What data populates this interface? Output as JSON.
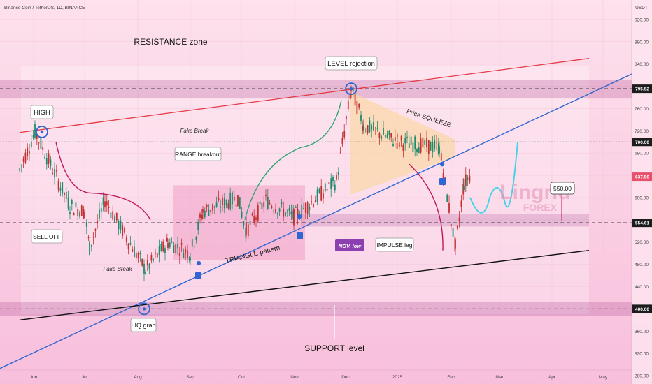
{
  "header": {
    "symbol": "Binance Coin / TetherUS, 1D, BINANCE",
    "currency": "USDT"
  },
  "chart_data": {
    "type": "candlestick",
    "title": "Binance Coin / TetherUS, 1D, BINANCE",
    "y_axis": {
      "ticks": [
        280,
        320,
        360,
        400,
        440,
        480,
        520,
        560,
        600,
        640,
        680,
        720,
        760,
        800,
        840,
        880,
        920
      ],
      "ylim": [
        265,
        955
      ]
    },
    "x_axis": {
      "ticks": [
        "Jun",
        "Jul",
        "Aug",
        "Sep",
        "Oct",
        "Nov",
        "Dec",
        "2025",
        "Feb",
        "Mar",
        "Apr",
        "May"
      ]
    },
    "price_tags": [
      {
        "label": "795.52",
        "value": 795.52,
        "style": "dark"
      },
      {
        "label": "700.00",
        "value": 700,
        "style": "dark"
      },
      {
        "label": "637.50",
        "value": 637.5,
        "style": "red"
      },
      {
        "label": "554.61",
        "value": 554.61,
        "style": "dark"
      },
      {
        "label": "400.00",
        "value": 400,
        "style": "dark"
      }
    ],
    "target_label": "550.00",
    "series": [
      {
        "name": "BNB/USDT daily",
        "key_points": [
          [
            "Jun",
            650
          ],
          [
            "Jun 6",
            718
          ],
          [
            "Jun 20",
            585
          ],
          [
            "Jul",
            575
          ],
          [
            "Jul 5",
            510
          ],
          [
            "Jul 20",
            595
          ],
          [
            "Aug 5",
            470
          ],
          [
            "Aug 20",
            520
          ],
          [
            "Sep 5",
            500
          ],
          [
            "Sep 20",
            575
          ],
          [
            "Oct",
            600
          ],
          [
            "Oct 10",
            540
          ],
          [
            "Oct 25",
            595
          ],
          [
            "Nov 5",
            565
          ],
          [
            "Nov 25",
            630
          ],
          [
            "Dec 4",
            795
          ],
          [
            "Dec 15",
            730
          ],
          [
            "Jan",
            700
          ],
          [
            "Jan 20",
            690
          ],
          [
            "Feb 3",
            510
          ],
          [
            "Feb 10",
            625
          ],
          [
            "Feb 14",
            640
          ]
        ]
      }
    ],
    "annotations": [
      "RESISTANCE zone",
      "LEVEL rejection",
      "HIGH",
      "Fake Break",
      "Price SQUEEZE",
      "RANGE breakout",
      "SELL OFF",
      "Fake Break",
      "TRIANGLE pattern",
      "NOV. low",
      "IMPULSE leg",
      "LIQ grab",
      "SUPPORT level"
    ],
    "watermark": {
      "top": "Lingrid",
      "bottom": "FOREX"
    }
  }
}
